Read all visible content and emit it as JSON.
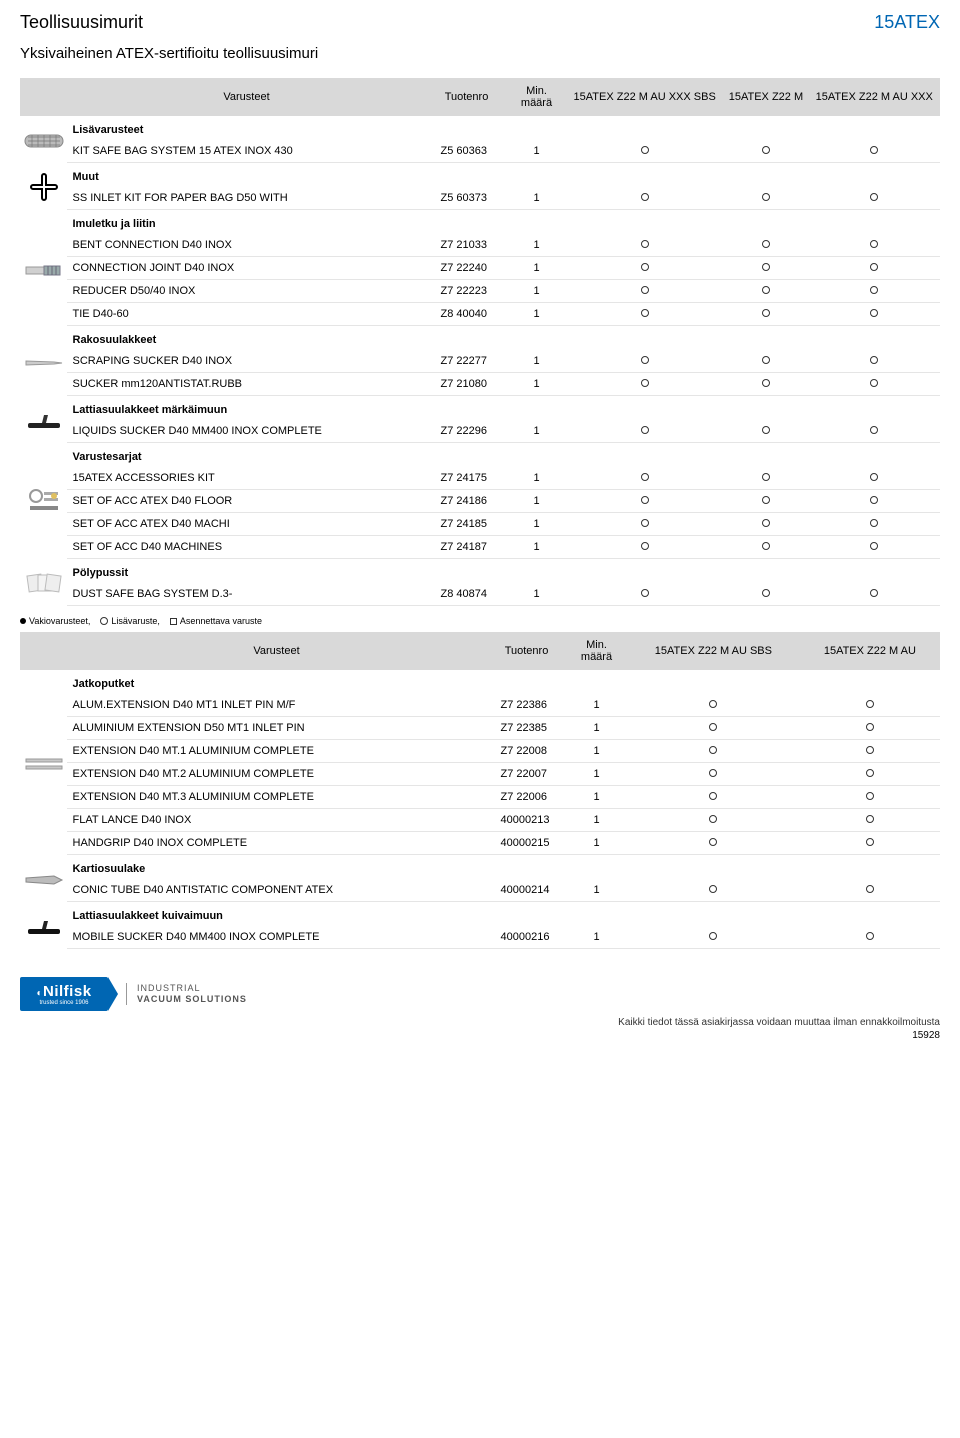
{
  "header": {
    "left": "Teollisuusimurit",
    "right": "15ATEX",
    "subtitle": "Yksivaiheinen ATEX-sertifioitu teollisuusimuri"
  },
  "table1": {
    "columns": {
      "desc": "Varusteet",
      "code": "Tuotenro",
      "min": "Min. määrä",
      "c1": "15ATEX Z22 M AU XXX SBS",
      "c2": "15ATEX Z22 M",
      "c3": "15ATEX Z22 M AU XXX"
    },
    "sections": [
      {
        "title": "Lisävarusteet",
        "icon": "mesh",
        "rows": [
          {
            "desc": "KIT SAFE BAG SYSTEM 15 ATEX INOX 430",
            "code": "Z5 60363",
            "min": "1",
            "m": [
              "o",
              "o",
              "o"
            ]
          }
        ]
      },
      {
        "title": "Muut",
        "icon": "plus",
        "rows": [
          {
            "desc": "SS INLET KIT FOR PAPER BAG D50 WITH",
            "code": "Z5 60373",
            "min": "1",
            "m": [
              "o",
              "o",
              "o"
            ]
          }
        ]
      },
      {
        "title": "Imuletku ja liitin",
        "icon": "tube",
        "rows": [
          {
            "desc": "BENT CONNECTION D40 INOX",
            "code": "Z7 21033",
            "min": "1",
            "m": [
              "o",
              "o",
              "o"
            ]
          },
          {
            "desc": "CONNECTION JOINT D40 INOX",
            "code": "Z7 22240",
            "min": "1",
            "m": [
              "o",
              "o",
              "o"
            ]
          },
          {
            "desc": "REDUCER D50/40 INOX",
            "code": "Z7 22223",
            "min": "1",
            "m": [
              "o",
              "o",
              "o"
            ]
          },
          {
            "desc": "TIE D40-60",
            "code": "Z8 40040",
            "min": "1",
            "m": [
              "o",
              "o",
              "o"
            ]
          }
        ]
      },
      {
        "title": "Rakosuulakkeet",
        "icon": "lance",
        "rows": [
          {
            "desc": "SCRAPING SUCKER D40 INOX",
            "code": "Z7 22277",
            "min": "1",
            "m": [
              "o",
              "o",
              "o"
            ]
          },
          {
            "desc": "SUCKER mm120ANTISTAT.RUBB",
            "code": "Z7 21080",
            "min": "1",
            "m": [
              "o",
              "o",
              "o"
            ]
          }
        ]
      },
      {
        "title": "Lattiasuulakkeet märkäimuun",
        "icon": "floor",
        "rows": [
          {
            "desc": "LIQUIDS SUCKER D40 MM400 INOX COMPLETE",
            "code": "Z7 22296",
            "min": "1",
            "m": [
              "o",
              "o",
              "o"
            ]
          }
        ]
      },
      {
        "title": "Varustesarjat",
        "icon": "kit",
        "rows": [
          {
            "desc": "15ATEX ACCESSORIES KIT",
            "code": "Z7 24175",
            "min": "1",
            "m": [
              "o",
              "o",
              "o"
            ]
          },
          {
            "desc": "SET OF ACC ATEX D40 FLOOR",
            "code": "Z7 24186",
            "min": "1",
            "m": [
              "o",
              "o",
              "o"
            ]
          },
          {
            "desc": "SET OF ACC ATEX D40 MACHI",
            "code": "Z7 24185",
            "min": "1",
            "m": [
              "o",
              "o",
              "o"
            ]
          },
          {
            "desc": "SET OF ACC D40 MACHINES",
            "code": "Z7 24187",
            "min": "1",
            "m": [
              "o",
              "o",
              "o"
            ]
          }
        ]
      },
      {
        "title": "Pölypussit",
        "icon": "bags",
        "rows": [
          {
            "desc": "DUST SAFE BAG SYSTEM D.3-",
            "code": "Z8 40874",
            "min": "1",
            "m": [
              "o",
              "o",
              "o"
            ]
          }
        ]
      }
    ]
  },
  "legend": {
    "std": "Vakiovarusteet,",
    "opt": "Lisävaruste,",
    "mount": "Asennettava varuste"
  },
  "table2": {
    "columns": {
      "desc": "Varusteet",
      "code": "Tuotenro",
      "min": "Min. määrä",
      "c1": "15ATEX Z22 M AU SBS",
      "c2": "15ATEX Z22 M AU"
    },
    "sections": [
      {
        "title": "Jatkoputket",
        "icon": "ext",
        "rows": [
          {
            "desc": "ALUM.EXTENSION D40 MT1 INLET PIN M/F",
            "code": "Z7 22386",
            "min": "1",
            "m": [
              "o",
              "o"
            ]
          },
          {
            "desc": "ALUMINIUM EXTENSION D50 MT1 INLET PIN",
            "code": "Z7 22385",
            "min": "1",
            "m": [
              "o",
              "o"
            ]
          },
          {
            "desc": "EXTENSION D40 MT.1 ALUMINIUM COMPLETE",
            "code": "Z7 22008",
            "min": "1",
            "m": [
              "o",
              "o"
            ]
          },
          {
            "desc": "EXTENSION D40 MT.2 ALUMINIUM COMPLETE",
            "code": "Z7 22007",
            "min": "1",
            "m": [
              "o",
              "o"
            ]
          },
          {
            "desc": "EXTENSION D40 MT.3 ALUMINIUM COMPLETE",
            "code": "Z7 22006",
            "min": "1",
            "m": [
              "o",
              "o"
            ]
          },
          {
            "desc": "FLAT LANCE D40 INOX",
            "code": "40000213",
            "min": "1",
            "m": [
              "o",
              "o"
            ]
          },
          {
            "desc": "HANDGRIP D40 INOX COMPLETE",
            "code": "40000215",
            "min": "1",
            "m": [
              "o",
              "o"
            ]
          }
        ]
      },
      {
        "title": "Kartiosuulake",
        "icon": "conic",
        "rows": [
          {
            "desc": "CONIC TUBE D40 ANTISTATIC COMPONENT ATEX",
            "code": "40000214",
            "min": "1",
            "m": [
              "o",
              "o"
            ]
          }
        ]
      },
      {
        "title": "Lattiasuulakkeet kuivaimuun",
        "icon": "floor2",
        "rows": [
          {
            "desc": "MOBILE SUCKER D40 MM400 INOX COMPLETE",
            "code": "40000216",
            "min": "1",
            "m": [
              "o",
              "o"
            ]
          }
        ]
      }
    ]
  },
  "footer": {
    "brand": "Nilfisk",
    "brand_sub": "trusted since 1906",
    "side1": "INDUSTRIAL",
    "side2": "VACUUM SOLUTIONS",
    "disclaimer": "Kaikki tiedot tässä asiakirjassa voidaan muuttaa ilman ennakkoilmoitusta",
    "page": "15928"
  },
  "icons": {
    "mesh": "<svg width='40' height='24' viewBox='0 0 40 24'><rect x='1' y='6' width='38' height='12' rx='6' fill='#bbb' stroke='#888'/><path d='M4 8 L36 8 M4 12 L36 12 M4 16 L36 16 M8 6 L8 18 M14 6 L14 18 M20 6 L20 18 M26 6 L26 18 M32 6 L32 18' stroke='#777' stroke-width='0.7'/></svg>",
    "plus": "<svg width='30' height='30' viewBox='0 0 30 30'><path d='M15 4 L15 26 M4 15 L26 15' stroke='#000' stroke-width='6' stroke-linecap='round'/><path d='M15 4 L15 26 M4 15 L26 15' stroke='#fff' stroke-width='2' stroke-linecap='round'/></svg>",
    "tube": "<svg width='40' height='24' viewBox='0 0 40 24'><rect x='2' y='9' width='18' height='7' fill='#d0d0d0' stroke='#999'/><rect x='20' y='8' width='16' height='9' fill='#9aa' stroke='#778'/><line x1='24' y1='8' x2='24' y2='17' stroke='#667'/><line x1='28' y1='8' x2='28' y2='17' stroke='#667'/><line x1='32' y1='8' x2='32' y2='17' stroke='#667'/></svg>",
    "lance": "<svg width='40' height='16' viewBox='0 0 40 16'><polygon points='2,6 30,7 38,8 30,9 2,10' fill='#ccc' stroke='#999'/></svg>",
    "floor": "<svg width='40' height='20' viewBox='0 0 40 20'><rect x='4' y='12' width='32' height='5' rx='2' fill='#222'/><path d='M18 12 L22 12 L24 4 L20 4 Z' fill='#333'/></svg>",
    "kit": "<svg width='40' height='30' viewBox='0 0 40 30'><circle cx='12' cy='10' r='6' fill='none' stroke='#999' stroke-width='2'/><rect x='20' y='6' width='14' height='3' fill='#aaa'/><rect x='20' y='12' width='14' height='3' fill='#aaa'/><rect x='6' y='20' width='28' height='4' fill='#888'/><circle cx='30' cy='10' r='3' fill='#e0c060'/></svg>",
    "bags": "<svg width='40' height='28' viewBox='0 0 40 28'><rect x='4' y='6' width='14' height='16' fill='#eee' stroke='#bbb' transform='rotate(-8 11 14)'/><rect x='14' y='6' width='14' height='16' fill='#f4f4f4' stroke='#bbb'/><rect x='22' y='6' width='14' height='16' fill='#eee' stroke='#bbb' transform='rotate(8 29 14)'/></svg>",
    "ext": "<svg width='40' height='18' viewBox='0 0 40 18'><rect x='2' y='4' width='36' height='3' fill='#c8c8c8' stroke='#999'/><rect x='2' y='11' width='36' height='3' fill='#c8c8c8' stroke='#999'/></svg>",
    "conic": "<svg width='40' height='14' viewBox='0 0 40 14'><polygon points='2,5 30,3 38,7 30,11 2,9' fill='#bcbcbc' stroke='#888'/></svg>",
    "floor2": "<svg width='40' height='20' viewBox='0 0 40 20'><rect x='4' y='12' width='32' height='5' rx='2' fill='#111'/><path d='M18 12 L22 12 L24 4 L20 4 Z' fill='#222'/></svg>"
  }
}
